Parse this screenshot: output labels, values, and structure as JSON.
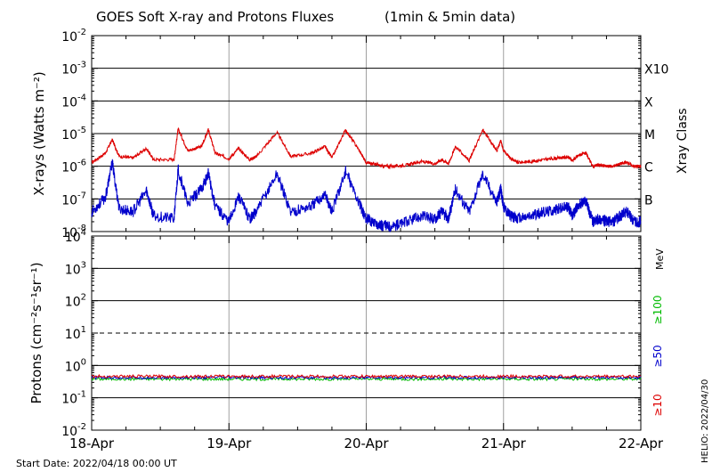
{
  "title": "GOES Soft X-ray and Protons Fluxes",
  "title_note": "(1min & 5min data)",
  "start_date": "Start Date: 2022/04/18 00:00 UT",
  "credit": "HELIO: 2022/04/30",
  "colors": {
    "xray_long": "#dd0000",
    "xray_short": "#0000cc",
    "proton_10": "#dd0000",
    "proton_50": "#0000cc",
    "proton_100": "#00bb00",
    "grid": "#000000",
    "day_line": "#a0a0a0"
  },
  "chart_data": [
    {
      "type": "line",
      "title": "GOES Soft X-ray and Protons Fluxes",
      "ylabel": "X-rays (Watts m⁻²)",
      "yscale": "log",
      "ylim": [
        1e-08,
        0.01
      ],
      "y_ticks": [
        {
          "base": "10",
          "exp": "-8"
        },
        {
          "base": "10",
          "exp": "-7"
        },
        {
          "base": "10",
          "exp": "-6"
        },
        {
          "base": "10",
          "exp": "-5"
        },
        {
          "base": "10",
          "exp": "-4"
        },
        {
          "base": "10",
          "exp": "-3"
        },
        {
          "base": "10",
          "exp": "-2"
        }
      ],
      "right_axis_title": "Xray Class",
      "classes": [
        {
          "label": "B",
          "flux": 1e-07
        },
        {
          "label": "C",
          "flux": 1e-06
        },
        {
          "label": "M",
          "flux": 1e-05
        },
        {
          "label": "X",
          "flux": 0.0001
        },
        {
          "label": "X10",
          "flux": 0.001
        }
      ],
      "x_ticks": [
        "18-Apr",
        "19-Apr",
        "20-Apr",
        "21-Apr",
        "22-Apr"
      ],
      "xlim_days": [
        0,
        4
      ],
      "grid": true,
      "series": [
        {
          "key": "long",
          "color": "#dd0000",
          "points": [
            [
              0,
              1.3e-06
            ],
            [
              0.1,
              2.5e-06
            ],
            [
              0.15,
              6.5e-06
            ],
            [
              0.2,
              2e-06
            ],
            [
              0.3,
              1.8e-06
            ],
            [
              0.4,
              3.5e-06
            ],
            [
              0.45,
              1.6e-06
            ],
            [
              0.6,
              1.6e-06
            ],
            [
              0.63,
              1.4e-05
            ],
            [
              0.7,
              3e-06
            ],
            [
              0.8,
              4e-06
            ],
            [
              0.85,
              1.3e-05
            ],
            [
              0.9,
              2.5e-06
            ],
            [
              1.0,
              1.7e-06
            ],
            [
              1.07,
              3.5e-06
            ],
            [
              1.15,
              1.6e-06
            ],
            [
              1.2,
              2e-06
            ],
            [
              1.35,
              1.1e-05
            ],
            [
              1.45,
              2e-06
            ],
            [
              1.6,
              2.5e-06
            ],
            [
              1.7,
              4e-06
            ],
            [
              1.75,
              1.8e-06
            ],
            [
              1.85,
              1.3e-05
            ],
            [
              1.95,
              3e-06
            ],
            [
              2.0,
              1.3e-06
            ],
            [
              2.05,
              1.2e-06
            ],
            [
              2.12,
              1e-06
            ],
            [
              2.2,
              1e-06
            ],
            [
              2.3,
              1.1e-06
            ],
            [
              2.4,
              1.4e-06
            ],
            [
              2.5,
              1.2e-06
            ],
            [
              2.55,
              1.6e-06
            ],
            [
              2.6,
              1.2e-06
            ],
            [
              2.65,
              4e-06
            ],
            [
              2.75,
              1.5e-06
            ],
            [
              2.85,
              1.3e-05
            ],
            [
              2.95,
              3e-06
            ],
            [
              2.98,
              6e-06
            ],
            [
              3.0,
              3e-06
            ],
            [
              3.05,
              1.8e-06
            ],
            [
              3.1,
              1.3e-06
            ],
            [
              3.2,
              1.4e-06
            ],
            [
              3.3,
              1.6e-06
            ],
            [
              3.4,
              1.8e-06
            ],
            [
              3.47,
              1.9e-06
            ],
            [
              3.5,
              1.5e-06
            ],
            [
              3.55,
              2.2e-06
            ],
            [
              3.6,
              2.5e-06
            ],
            [
              3.65,
              1e-06
            ],
            [
              3.7,
              1.1e-06
            ],
            [
              3.75,
              1e-06
            ],
            [
              3.8,
              1e-06
            ],
            [
              3.85,
              1.2e-06
            ],
            [
              3.9,
              1.3e-06
            ],
            [
              3.95,
              1e-06
            ],
            [
              4.0,
              1e-06
            ]
          ]
        },
        {
          "key": "short",
          "color": "#0000cc",
          "points": [
            [
              0,
              4e-08
            ],
            [
              0.1,
              1.1e-07
            ],
            [
              0.15,
              1.3e-06
            ],
            [
              0.2,
              5e-08
            ],
            [
              0.3,
              4e-08
            ],
            [
              0.4,
              1.8e-07
            ],
            [
              0.45,
              3e-08
            ],
            [
              0.6,
              2.5e-08
            ],
            [
              0.63,
              8e-07
            ],
            [
              0.7,
              7e-08
            ],
            [
              0.8,
              2e-07
            ],
            [
              0.85,
              6e-07
            ],
            [
              0.9,
              6e-08
            ],
            [
              1.0,
              2e-08
            ],
            [
              1.07,
              1.2e-07
            ],
            [
              1.15,
              2.5e-08
            ],
            [
              1.2,
              4e-08
            ],
            [
              1.35,
              6e-07
            ],
            [
              1.45,
              4e-08
            ],
            [
              1.6,
              6e-08
            ],
            [
              1.7,
              1.4e-07
            ],
            [
              1.75,
              4e-08
            ],
            [
              1.85,
              7e-07
            ],
            [
              1.95,
              7e-08
            ],
            [
              2.0,
              2.5e-08
            ],
            [
              2.05,
              2e-08
            ],
            [
              2.12,
              1.5e-08
            ],
            [
              2.2,
              1.5e-08
            ],
            [
              2.3,
              2e-08
            ],
            [
              2.4,
              3e-08
            ],
            [
              2.5,
              2.5e-08
            ],
            [
              2.55,
              4e-08
            ],
            [
              2.6,
              2.5e-08
            ],
            [
              2.65,
              2e-07
            ],
            [
              2.75,
              4e-08
            ],
            [
              2.85,
              6e-07
            ],
            [
              2.95,
              8e-08
            ],
            [
              2.98,
              2e-07
            ],
            [
              3.0,
              6e-08
            ],
            [
              3.05,
              3e-08
            ],
            [
              3.1,
              2.5e-08
            ],
            [
              3.2,
              3e-08
            ],
            [
              3.3,
              4e-08
            ],
            [
              3.4,
              5e-08
            ],
            [
              3.47,
              6e-08
            ],
            [
              3.5,
              3e-08
            ],
            [
              3.55,
              7e-08
            ],
            [
              3.6,
              9e-08
            ],
            [
              3.65,
              2e-08
            ],
            [
              3.7,
              2.5e-08
            ],
            [
              3.75,
              2e-08
            ],
            [
              3.8,
              2e-08
            ],
            [
              3.85,
              3e-08
            ],
            [
              3.9,
              4e-08
            ],
            [
              3.95,
              2e-08
            ],
            [
              4.0,
              2e-08
            ]
          ]
        }
      ]
    },
    {
      "type": "line",
      "ylabel": "Protons (cm⁻²s⁻¹sr⁻¹)",
      "yscale": "log",
      "ylim": [
        0.01,
        10000
      ],
      "y_ticks": [
        {
          "base": "10",
          "exp": "-2"
        },
        {
          "base": "10",
          "exp": "-1"
        },
        {
          "base": "10",
          "exp": "0"
        },
        {
          "base": "10",
          "exp": "1"
        },
        {
          "base": "10",
          "exp": "2"
        },
        {
          "base": "10",
          "exp": "3"
        },
        {
          "base": "10",
          "exp": "4"
        }
      ],
      "dashed_level": 10,
      "right_axis_unit": "MeV",
      "x_ticks": [
        "18-Apr",
        "19-Apr",
        "20-Apr",
        "21-Apr",
        "22-Apr"
      ],
      "xlim_days": [
        0,
        4
      ],
      "grid": true,
      "series": [
        {
          "key": "p10",
          "name": "≥10",
          "color": "#dd0000",
          "level": 0.46
        },
        {
          "key": "p50",
          "name": "≥50",
          "color": "#0000cc",
          "level": 0.42
        },
        {
          "key": "p100",
          "name": "≥100",
          "color": "#00bb00",
          "level": 0.38
        }
      ]
    }
  ]
}
